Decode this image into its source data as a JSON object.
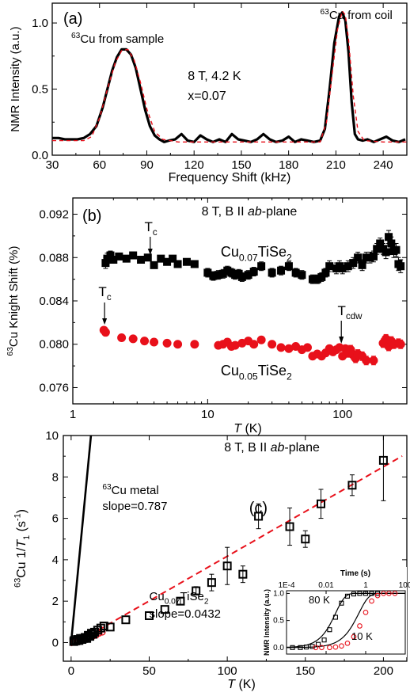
{
  "colors": {
    "black": "#000000",
    "red": "#e8101a",
    "fit_dash": "#e8101a"
  },
  "chart_data": [
    {
      "type": "line",
      "panel_label": "(a)",
      "xlabel": "Frequency Shift (kHz)",
      "ylabel": "NMR Intensity (a.u.)",
      "xlim": [
        30,
        255
      ],
      "ylim": [
        0,
        1.15
      ],
      "xticks": [
        30,
        60,
        90,
        120,
        150,
        180,
        210,
        240
      ],
      "yticks": [
        0.0,
        0.5,
        1.0
      ],
      "ytick_labels": [
        "0.0",
        "0.5",
        "1.0"
      ],
      "annotations": {
        "sample_prefix": "63",
        "sample_text": "Cu from sample",
        "coil_prefix": "63",
        "coil_text": "Cu from coil",
        "conditions": "8 T, 4.2 K",
        "doping": "x=0.07"
      },
      "series": [
        {
          "style": "data",
          "x": [
            30,
            34,
            38,
            42,
            46,
            50,
            54,
            58,
            62,
            65,
            68,
            71,
            74,
            77,
            80,
            83,
            86,
            89,
            92,
            95,
            98,
            101,
            104,
            108,
            112,
            116,
            120,
            124,
            128,
            132,
            136,
            140,
            144,
            148,
            152,
            156,
            160,
            164,
            168,
            172,
            176,
            180,
            184,
            188,
            192,
            196,
            200,
            203,
            206,
            209,
            212,
            214,
            216,
            218,
            220,
            222,
            224,
            227,
            230,
            234,
            238,
            242,
            246,
            250,
            254
          ],
          "y": [
            0.13,
            0.13,
            0.12,
            0.12,
            0.12,
            0.13,
            0.16,
            0.22,
            0.36,
            0.5,
            0.64,
            0.74,
            0.8,
            0.8,
            0.76,
            0.66,
            0.5,
            0.34,
            0.22,
            0.15,
            0.12,
            0.1,
            0.11,
            0.12,
            0.16,
            0.11,
            0.1,
            0.15,
            0.12,
            0.1,
            0.12,
            0.1,
            0.16,
            0.12,
            0.11,
            0.1,
            0.12,
            0.16,
            0.12,
            0.1,
            0.11,
            0.14,
            0.1,
            0.12,
            0.11,
            0.1,
            0.11,
            0.2,
            0.5,
            0.85,
            1.05,
            1.08,
            1.02,
            0.78,
            0.4,
            0.16,
            0.12,
            0.11,
            0.12,
            0.1,
            0.12,
            0.14,
            0.11,
            0.1,
            0.12
          ]
        },
        {
          "style": "fit",
          "x": [
            30,
            50,
            55,
            60,
            65,
            70,
            74,
            78,
            82,
            86,
            90,
            95,
            100,
            110,
            200,
            204,
            208,
            211,
            214,
            216,
            218,
            221,
            224,
            228,
            240,
            255
          ],
          "y": [
            0.11,
            0.11,
            0.14,
            0.28,
            0.5,
            0.7,
            0.79,
            0.8,
            0.72,
            0.55,
            0.35,
            0.18,
            0.12,
            0.1,
            0.1,
            0.25,
            0.65,
            0.95,
            1.09,
            1.06,
            0.88,
            0.45,
            0.18,
            0.11,
            0.1,
            0.1
          ]
        }
      ]
    },
    {
      "type": "scatter",
      "panel_label": "(b)",
      "title": "8 T, B II ab-plane",
      "title_parts": [
        "8 T, B II ",
        "ab",
        "-plane"
      ],
      "xscale": "log",
      "xlim": [
        1,
        300
      ],
      "ylim": [
        0.0745,
        0.0935
      ],
      "xticks": [
        1,
        10,
        100
      ],
      "xtick_labels": [
        "1",
        "10",
        "100"
      ],
      "yticks": [
        0.076,
        0.08,
        0.084,
        0.088,
        0.092
      ],
      "ytick_labels": [
        "0.076",
        "0.080",
        "0.084",
        "0.088",
        "0.092"
      ],
      "xlabel": "T (K)",
      "xlabel_parts": [
        "T",
        " (K)"
      ],
      "ylabel_prefix": "63",
      "ylabel": "Cu Knight Shift (%)",
      "annotations": {
        "tc1": "T",
        "tc1_sub": "c",
        "tc2": "T",
        "tc2_sub": "c",
        "tcdw": "T",
        "tcdw_sub": "cdw",
        "label_007": [
          "Cu",
          "0.07",
          "TiSe",
          "2"
        ],
        "label_005": [
          "Cu",
          "0.05",
          "TiSe",
          "2"
        ]
      },
      "series": [
        {
          "name": "Cu0.07TiSe2",
          "marker": "square",
          "x": [
            1.75,
            1.8,
            1.9,
            2.0,
            2.2,
            2.5,
            2.8,
            3.2,
            3.6,
            4.0,
            4.5,
            5.0,
            5.5,
            6.0,
            7.0,
            8.0,
            10,
            11,
            12,
            13,
            14,
            15,
            16,
            17,
            18,
            20,
            22,
            25,
            30,
            35,
            40,
            45,
            50,
            60,
            65,
            70,
            75,
            80,
            90,
            95,
            100,
            110,
            120,
            130,
            140,
            150,
            160,
            170,
            180,
            190,
            200,
            210,
            220,
            230,
            240,
            250,
            260,
            270
          ],
          "y": [
            0.0875,
            0.0879,
            0.0882,
            0.0878,
            0.0881,
            0.0879,
            0.0882,
            0.0878,
            0.088,
            0.0873,
            0.0879,
            0.0876,
            0.0879,
            0.0874,
            0.0876,
            0.0874,
            0.0866,
            0.0863,
            0.0864,
            0.0865,
            0.0868,
            0.0866,
            0.0864,
            0.0865,
            0.0862,
            0.0864,
            0.0867,
            0.0872,
            0.0866,
            0.0868,
            0.0872,
            0.0866,
            0.0864,
            0.086,
            0.086,
            0.0862,
            0.0866,
            0.0872,
            0.087,
            0.0872,
            0.087,
            0.0872,
            0.0875,
            0.088,
            0.0873,
            0.088,
            0.088,
            0.0881,
            0.0888,
            0.0893,
            0.0888,
            0.0885,
            0.0899,
            0.0893,
            0.0886,
            0.0887,
            0.0874,
            0.0872
          ],
          "err": [
            0.0005,
            0.0005,
            0.0004,
            0.0003,
            0.0003,
            0.0003,
            0.0003,
            0.0003,
            0.0003,
            0.0003,
            0.0003,
            0.0003,
            0.0003,
            0.0003,
            0.0003,
            0.0003,
            0.0004,
            0.0004,
            0.0004,
            0.0004,
            0.0004,
            0.0004,
            0.0004,
            0.0004,
            0.0004,
            0.0004,
            0.0004,
            0.0004,
            0.0004,
            0.0004,
            0.0004,
            0.0004,
            0.0004,
            0.0004,
            0.0004,
            0.0004,
            0.0004,
            0.0005,
            0.0005,
            0.0005,
            0.0005,
            0.0005,
            0.0005,
            0.0005,
            0.0005,
            0.0005,
            0.0005,
            0.0005,
            0.0005,
            0.0005,
            0.0005,
            0.0006,
            0.0006,
            0.0006,
            0.0006,
            0.0006,
            0.0006,
            0.0006
          ]
        },
        {
          "name": "Cu0.05TiSe2",
          "marker": "circle",
          "x": [
            1.7,
            1.75,
            2.3,
            2.8,
            3.4,
            4.0,
            5.0,
            6.0,
            8.0,
            12,
            13,
            14,
            15,
            16,
            18,
            20,
            22,
            25,
            30,
            35,
            40,
            45,
            50,
            55,
            60,
            65,
            70,
            75,
            80,
            85,
            90,
            95,
            100,
            105,
            110,
            115,
            120,
            125,
            130,
            140,
            150,
            170,
            200,
            210,
            220,
            230,
            240,
            260,
            270
          ],
          "y": [
            0.0813,
            0.0811,
            0.0806,
            0.0805,
            0.0803,
            0.0802,
            0.0801,
            0.08,
            0.08,
            0.0799,
            0.08,
            0.0802,
            0.0798,
            0.0799,
            0.0801,
            0.0803,
            0.08,
            0.0804,
            0.08,
            0.0797,
            0.0796,
            0.0798,
            0.0795,
            0.0797,
            0.0789,
            0.0791,
            0.0789,
            0.0792,
            0.0796,
            0.0793,
            0.0795,
            0.0797,
            0.0789,
            0.0796,
            0.0792,
            0.0795,
            0.079,
            0.0787,
            0.0791,
            0.0789,
            0.0785,
            0.0785,
            0.0801,
            0.0805,
            0.0798,
            0.0803,
            0.08,
            0.0801,
            0.08
          ],
          "err": [
            0.0002,
            0.0002,
            0.0002,
            0.0002,
            0.0002,
            0.0002,
            0.0002,
            0.0002,
            0.0002,
            0.0003,
            0.0003,
            0.0003,
            0.0003,
            0.0003,
            0.0003,
            0.0003,
            0.0003,
            0.0003,
            0.0003,
            0.0003,
            0.0003,
            0.0003,
            0.0003,
            0.0003,
            0.0003,
            0.0003,
            0.0003,
            0.0003,
            0.0003,
            0.0003,
            0.0003,
            0.0003,
            0.0003,
            0.0003,
            0.0004,
            0.0004,
            0.0004,
            0.0004,
            0.0004,
            0.0004,
            0.0004,
            0.0004,
            0.0004,
            0.0004,
            0.0004,
            0.0004,
            0.0004,
            0.0004,
            0.0004
          ]
        }
      ]
    },
    {
      "type": "scatter",
      "panel_label": "(c)",
      "title": "8 T, B II ab-plane",
      "title_parts": [
        "8 T, B II ",
        "ab",
        "-plane"
      ],
      "xlim": [
        -5,
        215
      ],
      "ylim": [
        -0.9,
        10
      ],
      "xticks": [
        0,
        50,
        100,
        150,
        200
      ],
      "yticks": [
        0,
        2,
        4,
        6,
        8,
        10
      ],
      "xlabel": "T (K)",
      "xlabel_parts": [
        "T",
        " (K)"
      ],
      "ylabel_prefix": "63",
      "ylabel_parts": [
        "Cu 1/",
        "T",
        "1",
        " (s",
        "-1",
        ")"
      ],
      "annotations": {
        "metal_prefix": "63",
        "metal_text": "Cu metal",
        "metal_slope": "slope=0.787",
        "sample_label": [
          "Cu",
          "0.07",
          "TiSe",
          "2"
        ],
        "sample_slope": "slope=0.0432"
      },
      "series": [
        {
          "name": "Cu0.07TiSe2",
          "marker": "square",
          "x": [
            1.7,
            2,
            3,
            4,
            5,
            6,
            7,
            8,
            9,
            10,
            11,
            12,
            13,
            14,
            15,
            17,
            19,
            21,
            25,
            35,
            50,
            60,
            70,
            80,
            90,
            100,
            110,
            120,
            140,
            150,
            160,
            180,
            200
          ],
          "y": [
            0.05,
            0.1,
            0.08,
            0.15,
            0.1,
            0.2,
            0.15,
            0.2,
            0.25,
            0.2,
            0.35,
            0.3,
            0.45,
            0.4,
            0.5,
            0.6,
            0.7,
            0.8,
            0.75,
            1.1,
            1.3,
            1.6,
            2.0,
            2.5,
            2.9,
            3.7,
            3.3,
            6.1,
            5.6,
            5.0,
            6.7,
            7.6,
            8.8
          ],
          "err": [
            0.05,
            0.05,
            0.05,
            0.05,
            0.05,
            0.05,
            0.05,
            0.05,
            0.05,
            0.06,
            0.08,
            0.08,
            0.08,
            0.08,
            0.08,
            0.1,
            0.1,
            0.1,
            0.1,
            0.1,
            0.1,
            0.1,
            0.15,
            0.2,
            0.4,
            0.9,
            0.4,
            0.6,
            0.9,
            0.4,
            0.7,
            0.5,
            1.95
          ]
        },
        {
          "name": "Cu0.05TiSe2",
          "marker": "circle",
          "x": [
            2,
            4,
            6,
            8,
            10,
            12,
            14,
            16,
            18,
            20
          ],
          "y": [
            0.05,
            0.08,
            0.1,
            0.15,
            0.2,
            0.25,
            0.3,
            0.35,
            0.45,
            0.5
          ]
        },
        {
          "style": "metal_line",
          "slope": 0.787,
          "x": [
            0,
            13
          ],
          "intercept": 0
        },
        {
          "style": "fit_line",
          "slope": 0.0432,
          "x": [
            0,
            212
          ],
          "intercept": -0.15
        }
      ],
      "inset": {
        "xscale": "log",
        "xlim": [
          0.0001,
          100
        ],
        "xticks": [
          0.0001,
          0.01,
          1,
          100
        ],
        "xtick_labels": [
          "1E-4",
          "0.01",
          "1",
          "100"
        ],
        "xlabel": "Time (s)",
        "ylabel": "NMR Intensity (a.u.)",
        "ylim": [
          -0.12,
          1.05
        ],
        "yticks": [
          0.0,
          0.5,
          1.0
        ],
        "ytick_labels": [
          "0.0",
          "0.5",
          "1.0"
        ],
        "labels": {
          "k80": "80 K",
          "k10": "10 K"
        },
        "series": [
          {
            "name": "80 K",
            "marker": "square",
            "x": [
              0.0002,
              0.0005,
              0.001,
              0.002,
              0.004,
              0.008,
              0.015,
              0.03,
              0.06,
              0.12,
              0.25,
              0.5,
              1,
              2,
              4
            ],
            "y": [
              0.0,
              0.0,
              0.01,
              0.02,
              0.06,
              0.14,
              0.33,
              0.56,
              0.82,
              0.95,
              0.99,
              1.0,
              1.0,
              1.0,
              1.0
            ]
          },
          {
            "name": "10 K",
            "marker": "circle",
            "x": [
              0.003,
              0.006,
              0.015,
              0.03,
              0.06,
              0.12,
              0.25,
              0.5,
              1,
              2,
              4,
              8,
              15,
              30
            ],
            "y": [
              0.0,
              0.0,
              0.0,
              0.01,
              0.03,
              0.08,
              0.2,
              0.4,
              0.65,
              0.86,
              0.96,
              1.0,
              1.0,
              1.0
            ]
          }
        ]
      }
    }
  ]
}
